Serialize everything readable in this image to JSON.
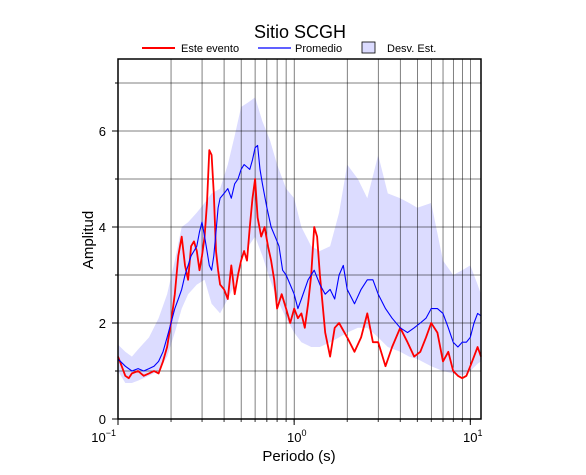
{
  "chart_data": {
    "type": "line",
    "title": "Sitio SCGH",
    "xlabel": "Periodo (s)",
    "ylabel": "Amplitud",
    "xscale": "log",
    "xlim": [
      0.1,
      11.5
    ],
    "ylim": [
      0,
      7.5
    ],
    "grid": true,
    "legend_position": "top",
    "x_tick_labels": [
      {
        "base": "10",
        "exp": "−1"
      },
      {
        "base": "10",
        "exp": "0"
      },
      {
        "base": "10",
        "exp": "1"
      }
    ],
    "y_ticks": [
      "0",
      "2",
      "4",
      "6"
    ],
    "legend": {
      "event_label": "Este evento",
      "mean_label": "Promedio",
      "std_label": "Desv. Est."
    },
    "colors": {
      "event": "#ff0000",
      "mean": "#0000ff",
      "std_fill": "#dcdcff"
    },
    "std_band": {
      "x": [
        0.1,
        0.11,
        0.12,
        0.13,
        0.15,
        0.17,
        0.19,
        0.21,
        0.23,
        0.25,
        0.28,
        0.31,
        0.34,
        0.38,
        0.42,
        0.46,
        0.5,
        0.55,
        0.6,
        0.66,
        0.73,
        0.8,
        0.9,
        1.0,
        1.1,
        1.25,
        1.4,
        1.6,
        1.8,
        2.0,
        2.3,
        2.6,
        3.0,
        3.4,
        4.0,
        4.5,
        5.0,
        6.0,
        7.0,
        8.0,
        9.0,
        10.0,
        11.0,
        11.5
      ],
      "upper": [
        1.55,
        1.4,
        1.3,
        1.45,
        1.7,
        2.1,
        2.6,
        3.3,
        4.0,
        4.1,
        4.3,
        4.5,
        4.7,
        4.8,
        5.3,
        5.9,
        6.5,
        6.6,
        6.7,
        6.2,
        5.8,
        5.3,
        4.8,
        4.6,
        4.0,
        3.6,
        3.5,
        3.6,
        4.3,
        5.3,
        5.0,
        4.6,
        5.5,
        4.7,
        4.6,
        4.5,
        4.4,
        4.5,
        3.3,
        3.0,
        3.1,
        3.2,
        2.8,
        2.6
      ],
      "lower": [
        1.0,
        0.75,
        0.75,
        0.8,
        0.9,
        1.0,
        1.3,
        1.8,
        2.3,
        2.6,
        2.8,
        2.9,
        2.4,
        2.2,
        2.5,
        2.8,
        3.3,
        3.6,
        3.8,
        3.4,
        2.9,
        2.5,
        2.1,
        1.8,
        1.6,
        1.5,
        1.5,
        1.6,
        1.7,
        1.8,
        1.9,
        1.9,
        1.7,
        1.5,
        1.4,
        1.3,
        1.25,
        1.1,
        1.0,
        0.95,
        0.9,
        1.0,
        1.15,
        1.2
      ]
    },
    "series": [
      {
        "name": "Este evento",
        "x": [
          0.1,
          0.105,
          0.11,
          0.115,
          0.12,
          0.13,
          0.14,
          0.15,
          0.16,
          0.17,
          0.18,
          0.19,
          0.2,
          0.21,
          0.22,
          0.23,
          0.24,
          0.25,
          0.26,
          0.27,
          0.28,
          0.29,
          0.3,
          0.31,
          0.32,
          0.33,
          0.34,
          0.35,
          0.36,
          0.37,
          0.38,
          0.4,
          0.42,
          0.44,
          0.46,
          0.48,
          0.5,
          0.52,
          0.54,
          0.56,
          0.58,
          0.6,
          0.62,
          0.65,
          0.68,
          0.71,
          0.74,
          0.77,
          0.8,
          0.85,
          0.9,
          0.95,
          1.0,
          1.05,
          1.1,
          1.15,
          1.2,
          1.25,
          1.3,
          1.35,
          1.4,
          1.5,
          1.6,
          1.7,
          1.8,
          2.0,
          2.2,
          2.4,
          2.6,
          2.8,
          3.0,
          3.3,
          3.6,
          4.0,
          4.4,
          4.8,
          5.2,
          5.6,
          6.0,
          6.5,
          7.0,
          7.5,
          8.0,
          8.5,
          9.0,
          9.5,
          10.0,
          10.5,
          11.0,
          11.5
        ],
        "y": [
          1.3,
          1.1,
          0.9,
          0.85,
          0.95,
          1.0,
          0.9,
          0.95,
          1.0,
          0.95,
          1.2,
          1.5,
          2.0,
          2.6,
          3.4,
          3.8,
          3.2,
          2.9,
          3.6,
          3.7,
          3.5,
          3.1,
          3.4,
          3.8,
          4.5,
          5.6,
          5.5,
          4.7,
          3.5,
          3.1,
          2.8,
          2.7,
          2.5,
          3.2,
          2.6,
          3.0,
          3.3,
          3.5,
          3.3,
          4.0,
          4.6,
          5.0,
          4.2,
          3.8,
          4.0,
          3.6,
          3.3,
          2.9,
          2.3,
          2.6,
          2.3,
          2.0,
          2.3,
          2.1,
          2.2,
          1.9,
          2.4,
          3.0,
          4.0,
          3.8,
          3.0,
          1.8,
          1.3,
          1.9,
          2.0,
          1.7,
          1.4,
          1.7,
          2.2,
          1.6,
          1.6,
          1.1,
          1.5,
          1.9,
          1.6,
          1.3,
          1.4,
          1.7,
          2.0,
          1.8,
          1.2,
          1.4,
          1.0,
          0.9,
          0.85,
          0.9,
          1.1,
          1.3,
          1.5,
          1.3
        ]
      },
      {
        "name": "Promedio",
        "x": [
          0.1,
          0.11,
          0.12,
          0.13,
          0.14,
          0.15,
          0.16,
          0.17,
          0.18,
          0.19,
          0.2,
          0.21,
          0.22,
          0.23,
          0.24,
          0.25,
          0.26,
          0.27,
          0.28,
          0.29,
          0.3,
          0.31,
          0.32,
          0.33,
          0.34,
          0.35,
          0.36,
          0.37,
          0.38,
          0.4,
          0.42,
          0.44,
          0.46,
          0.48,
          0.5,
          0.52,
          0.54,
          0.56,
          0.58,
          0.6,
          0.62,
          0.64,
          0.66,
          0.7,
          0.74,
          0.78,
          0.82,
          0.86,
          0.9,
          0.95,
          1.0,
          1.05,
          1.1,
          1.2,
          1.3,
          1.4,
          1.5,
          1.6,
          1.7,
          1.8,
          1.9,
          2.0,
          2.2,
          2.4,
          2.6,
          2.8,
          3.0,
          3.3,
          3.6,
          4.0,
          4.4,
          4.8,
          5.2,
          5.6,
          6.0,
          6.5,
          7.0,
          7.5,
          8.0,
          8.5,
          9.0,
          9.5,
          10.0,
          10.5,
          11.0,
          11.5
        ],
        "y": [
          1.25,
          1.1,
          1.0,
          1.05,
          1.0,
          1.05,
          1.1,
          1.2,
          1.4,
          1.7,
          2.0,
          2.3,
          2.5,
          2.7,
          3.0,
          3.2,
          3.4,
          3.5,
          3.6,
          3.9,
          4.1,
          3.8,
          3.5,
          3.2,
          3.1,
          3.4,
          3.9,
          4.4,
          4.6,
          4.7,
          4.8,
          4.6,
          4.9,
          5.0,
          5.2,
          5.3,
          5.25,
          5.2,
          5.4,
          5.65,
          5.7,
          5.2,
          4.9,
          4.4,
          4.0,
          3.8,
          3.6,
          3.1,
          3.0,
          2.8,
          2.6,
          2.3,
          2.5,
          2.9,
          3.1,
          2.8,
          2.6,
          2.7,
          2.5,
          3.0,
          3.2,
          2.7,
          2.4,
          2.7,
          2.9,
          2.9,
          2.6,
          2.3,
          2.1,
          1.9,
          1.8,
          1.9,
          2.0,
          2.1,
          2.3,
          2.3,
          2.2,
          1.9,
          1.6,
          1.5,
          1.6,
          1.6,
          1.7,
          2.0,
          2.2,
          2.15
        ]
      }
    ]
  }
}
